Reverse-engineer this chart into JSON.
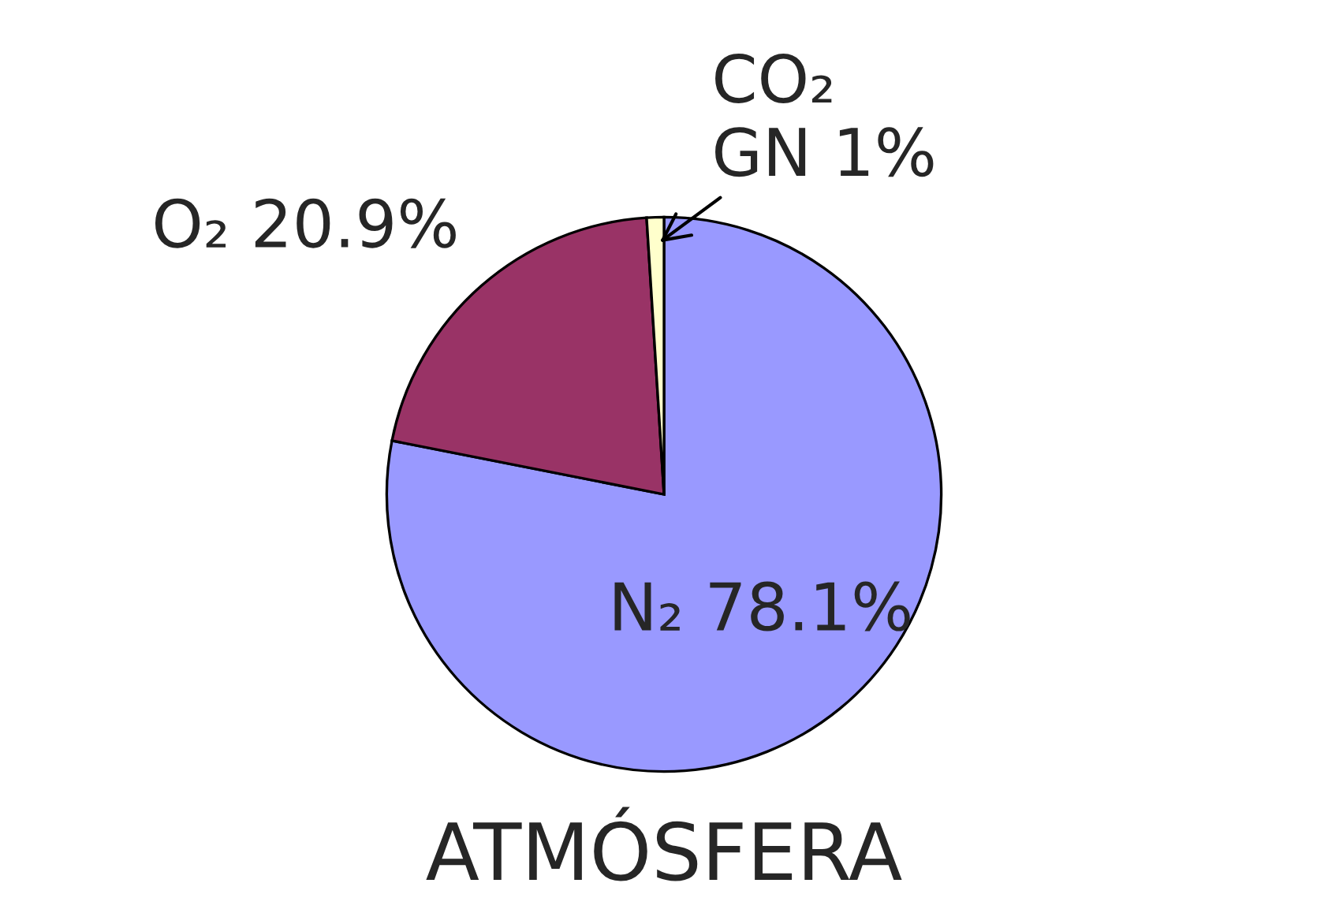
{
  "chart_data": {
    "type": "pie",
    "title": "ATMÓSFERA",
    "categories": [
      "N₂",
      "O₂",
      "CO₂\nGN"
    ],
    "values": [
      78.1,
      20.9,
      1
    ],
    "value_labels": [
      "78.1%",
      "20.9%",
      "1%"
    ],
    "colors": [
      "#9999ff",
      "#993366",
      "#ffffcc"
    ]
  }
}
